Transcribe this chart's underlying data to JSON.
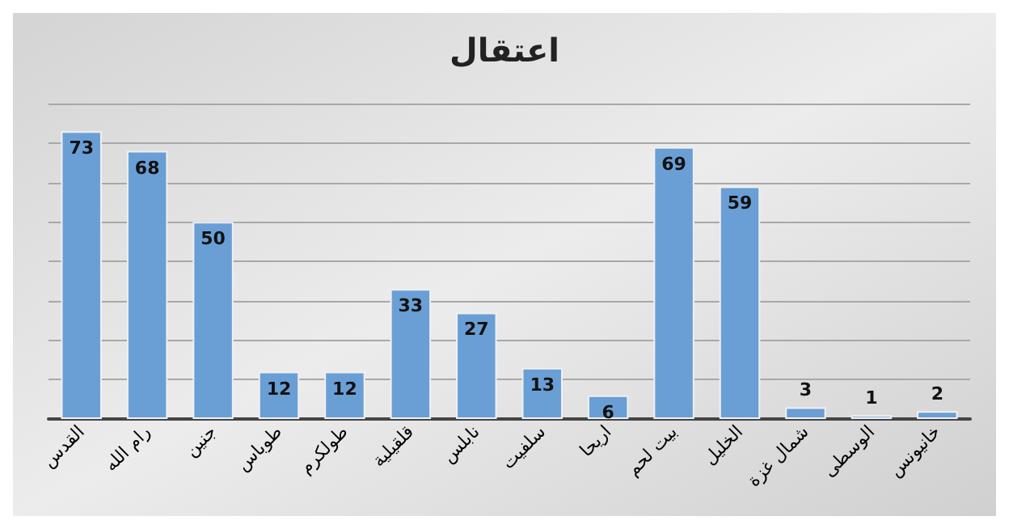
{
  "chart_data": {
    "type": "bar",
    "title": "اعتقال",
    "categories": [
      "القدس",
      "رام الله",
      "جنين",
      "طوباس",
      "طولكرم",
      "قلقيلية",
      "نابلس",
      "سلفيت",
      "اريحا",
      "بيت لحم",
      "الخليل",
      "شمال غزة",
      "الوسطى",
      "خانيونس"
    ],
    "values": [
      73,
      68,
      50,
      12,
      12,
      33,
      27,
      13,
      6,
      69,
      59,
      3,
      1,
      2
    ],
    "color": "#6a9fd6",
    "ylim": [
      0,
      80
    ],
    "yticks": [
      0,
      10,
      20,
      30,
      40,
      50,
      60,
      70,
      80
    ],
    "tick_labels": "x",
    "grid": "y",
    "data_labels": true
  }
}
